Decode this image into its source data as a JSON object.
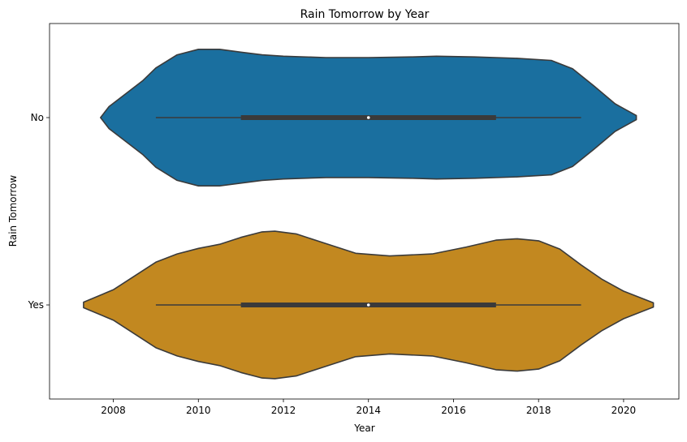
{
  "chart_data": {
    "type": "violin",
    "orientation": "horizontal",
    "title": "Rain Tomorrow by Year",
    "xlabel": "Year",
    "ylabel": "Rain Tomorrow",
    "xlim": [
      2006.5,
      2021.3
    ],
    "xticks": [
      2008,
      2010,
      2012,
      2014,
      2016,
      2018,
      2020
    ],
    "grid": false,
    "categories": [
      "No",
      "Yes"
    ],
    "series": [
      {
        "category": "No",
        "color": "#1a6f9f",
        "min": 2009,
        "q1": 2011,
        "median": 2014,
        "q3": 2017,
        "max": 2019,
        "density": [
          [
            2007.7,
            0.0
          ],
          [
            2007.9,
            0.16
          ],
          [
            2008.3,
            0.35
          ],
          [
            2008.7,
            0.54
          ],
          [
            2009.0,
            0.72
          ],
          [
            2009.5,
            0.91
          ],
          [
            2010.0,
            0.99
          ],
          [
            2010.5,
            0.99
          ],
          [
            2011.0,
            0.95
          ],
          [
            2011.5,
            0.91
          ],
          [
            2012.0,
            0.89
          ],
          [
            2013.0,
            0.87
          ],
          [
            2014.0,
            0.87
          ],
          [
            2015.0,
            0.88
          ],
          [
            2015.6,
            0.89
          ],
          [
            2016.5,
            0.88
          ],
          [
            2017.5,
            0.86
          ],
          [
            2018.3,
            0.83
          ],
          [
            2018.8,
            0.71
          ],
          [
            2019.3,
            0.46
          ],
          [
            2019.8,
            0.2
          ],
          [
            2020.3,
            0.03
          ],
          [
            2020.3,
            0.0
          ]
        ]
      },
      {
        "category": "Yes",
        "color": "#c28820",
        "min": 2009,
        "q1": 2011,
        "median": 2014,
        "q3": 2017,
        "max": 2019,
        "density": [
          [
            2007.3,
            0.0
          ],
          [
            2007.3,
            0.04
          ],
          [
            2008.0,
            0.22
          ],
          [
            2008.5,
            0.42
          ],
          [
            2009.0,
            0.62
          ],
          [
            2009.5,
            0.74
          ],
          [
            2010.0,
            0.82
          ],
          [
            2010.5,
            0.88
          ],
          [
            2011.0,
            0.98
          ],
          [
            2011.5,
            1.06
          ],
          [
            2011.8,
            1.07
          ],
          [
            2012.3,
            1.03
          ],
          [
            2013.0,
            0.89
          ],
          [
            2013.7,
            0.75
          ],
          [
            2014.5,
            0.71
          ],
          [
            2015.5,
            0.74
          ],
          [
            2016.3,
            0.84
          ],
          [
            2017.0,
            0.94
          ],
          [
            2017.5,
            0.96
          ],
          [
            2018.0,
            0.93
          ],
          [
            2018.5,
            0.81
          ],
          [
            2019.0,
            0.58
          ],
          [
            2019.5,
            0.37
          ],
          [
            2020.0,
            0.2
          ],
          [
            2020.7,
            0.03
          ],
          [
            2020.7,
            0.0
          ]
        ]
      }
    ]
  }
}
